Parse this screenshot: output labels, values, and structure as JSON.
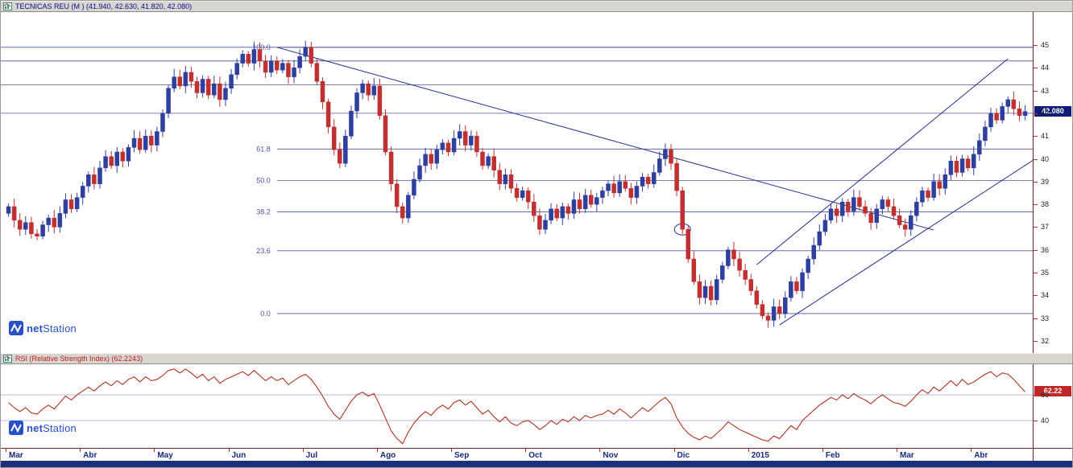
{
  "main_panel": {
    "title": "TECNICAS REU (M ) (41.940, 42.630, 41.820, 42.080)",
    "price_badge": "42.080",
    "badge_price": 42.08,
    "axis_ticks": [
      45,
      44,
      43,
      42,
      41,
      40,
      39,
      38,
      37,
      36,
      35,
      34,
      33,
      32
    ]
  },
  "rsi_panel": {
    "title": "RSI (Relative Strength Index) (62.2243)",
    "value_badge": "62.22",
    "badge_value": 62.22,
    "axis_ticks": [
      60,
      40
    ]
  },
  "date_axis": {
    "labels": [
      "Mar",
      "Abr",
      "May",
      "Jun",
      "Jul",
      "Ago",
      "Sep",
      "Oct",
      "Nov",
      "Dic",
      "2015",
      "Feb",
      "Mar",
      "Abr"
    ],
    "start_bars": [
      0,
      13,
      26,
      39,
      52,
      65,
      78,
      91,
      104,
      117,
      130,
      143,
      156,
      169
    ]
  },
  "logo": {
    "net": "net",
    "station": "Station"
  },
  "colors": {
    "candle_up": "#2f3f9e",
    "candle_down": "#c03030",
    "level_line": "#4a55a2",
    "trend_line": "#24308f",
    "rsi_line": "#b23020",
    "grid_line": "#9aa0c8",
    "badge_price_bg": "#101c7a",
    "badge_rsi_bg": "#c02828",
    "tick_red": "#c03030"
  },
  "chart_data": [
    {
      "type": "candlestick",
      "name": "TECNICAS REU (M)",
      "last_ohlc": {
        "open": 41.94,
        "high": 42.63,
        "low": 41.82,
        "close": 42.08
      },
      "ylim": [
        31.8,
        45.5
      ],
      "open_first": 37.6,
      "closes": [
        37.9,
        37.3,
        36.9,
        37.2,
        36.7,
        36.6,
        37.1,
        37.4,
        37.0,
        37.6,
        38.2,
        37.8,
        38.3,
        38.8,
        39.3,
        38.9,
        39.6,
        40.1,
        39.7,
        40.3,
        39.9,
        40.5,
        40.9,
        40.4,
        41.0,
        40.6,
        41.2,
        42.0,
        43.1,
        43.6,
        43.2,
        43.8,
        43.4,
        42.9,
        43.5,
        42.8,
        43.3,
        42.6,
        43.1,
        43.7,
        44.2,
        44.6,
        44.2,
        44.8,
        44.3,
        43.8,
        44.3,
        43.9,
        44.2,
        43.6,
        44.0,
        44.5,
        44.9,
        44.2,
        43.4,
        42.5,
        41.4,
        40.4,
        39.8,
        41.0,
        42.1,
        42.9,
        43.3,
        42.8,
        43.2,
        41.9,
        40.3,
        38.9,
        37.9,
        37.4,
        38.4,
        39.1,
        39.7,
        40.2,
        39.8,
        40.4,
        40.7,
        40.3,
        40.9,
        41.2,
        40.6,
        41.0,
        40.3,
        39.7,
        40.1,
        39.5,
        38.9,
        39.3,
        38.7,
        38.3,
        38.6,
        38.1,
        37.5,
        36.9,
        37.3,
        37.8,
        37.4,
        37.9,
        37.6,
        38.2,
        37.8,
        38.4,
        38.0,
        38.3,
        38.6,
        38.9,
        38.5,
        39.0,
        38.7,
        38.3,
        38.8,
        39.2,
        38.9,
        39.4,
        40.0,
        40.4,
        39.8,
        38.6,
        36.9,
        35.6,
        34.6,
        33.9,
        34.4,
        33.8,
        34.7,
        35.3,
        36.0,
        35.6,
        35.1,
        34.7,
        34.2,
        33.6,
        33.1,
        32.9,
        33.5,
        33.2,
        33.9,
        34.6,
        34.2,
        35.0,
        35.6,
        36.2,
        36.8,
        37.3,
        37.8,
        37.5,
        38.1,
        37.7,
        38.3,
        37.9,
        37.6,
        37.2,
        37.8,
        38.2,
        37.9,
        37.5,
        37.1,
        36.9,
        37.5,
        38.1,
        38.6,
        38.3,
        39.0,
        38.7,
        39.3,
        39.9,
        39.4,
        40.0,
        39.6,
        40.2,
        40.8,
        41.4,
        42.0,
        41.7,
        42.3,
        42.6,
        42.2,
        41.9,
        42.08
      ],
      "fibonacci": {
        "start_bar": 47,
        "levels": [
          {
            "label": "100.0",
            "price": 44.9
          },
          {
            "label": "61.8",
            "price": 40.43
          },
          {
            "label": "50.0",
            "price": 39.05
          },
          {
            "label": "38.2",
            "price": 37.67
          },
          {
            "label": "23.6",
            "price": 35.96
          },
          {
            "label": "0.0",
            "price": 33.2
          }
        ]
      },
      "horizontal_lines": [
        44.9,
        44.3,
        43.25,
        42.0
      ],
      "trend_lines": [
        {
          "x1_bar": 47,
          "p1": 44.9,
          "x2_bar": 162,
          "p2": 36.87
        },
        {
          "x1_bar": 131,
          "p1": 35.35,
          "x2_bar": 175,
          "p2": 44.4
        },
        {
          "x1_bar": 135,
          "p1": 32.7,
          "x2_bar": 181,
          "p2": 40.2
        }
      ],
      "ellipse_annotation": {
        "bar": 118,
        "price": 36.9
      }
    },
    {
      "type": "line",
      "name": "RSI (Relative Strength Index)",
      "last_value": 62.2243,
      "ylim": [
        20,
        85
      ],
      "gridlines": [
        60,
        40
      ],
      "values": [
        54,
        50,
        47,
        50,
        46,
        45,
        49,
        52,
        49,
        54,
        59,
        56,
        60,
        63,
        66,
        63,
        67,
        70,
        67,
        71,
        68,
        72,
        74,
        70,
        74,
        71,
        72,
        75,
        79,
        80,
        77,
        80,
        77,
        73,
        76,
        71,
        74,
        69,
        72,
        74,
        76,
        78,
        75,
        79,
        75,
        71,
        74,
        71,
        73,
        68,
        71,
        74,
        76,
        72,
        66,
        59,
        51,
        45,
        41,
        48,
        55,
        60,
        62,
        59,
        61,
        52,
        42,
        32,
        26,
        22,
        31,
        38,
        43,
        47,
        44,
        49,
        52,
        49,
        54,
        56,
        52,
        55,
        50,
        45,
        48,
        43,
        39,
        43,
        38,
        36,
        39,
        40,
        37,
        33,
        36,
        40,
        37,
        41,
        39,
        43,
        40,
        44,
        42,
        44,
        45,
        48,
        45,
        49,
        46,
        42,
        46,
        50,
        47,
        51,
        55,
        58,
        53,
        42,
        35,
        30,
        27,
        25,
        28,
        26,
        30,
        34,
        39,
        36,
        33,
        31,
        29,
        27,
        25,
        24,
        28,
        26,
        31,
        36,
        33,
        40,
        44,
        48,
        52,
        55,
        58,
        56,
        60,
        57,
        61,
        58,
        56,
        53,
        57,
        60,
        57,
        54,
        53,
        51,
        55,
        60,
        64,
        61,
        66,
        63,
        67,
        71,
        67,
        72,
        68,
        70,
        73,
        76,
        78,
        74,
        77,
        76,
        72,
        67,
        62.22
      ]
    }
  ]
}
